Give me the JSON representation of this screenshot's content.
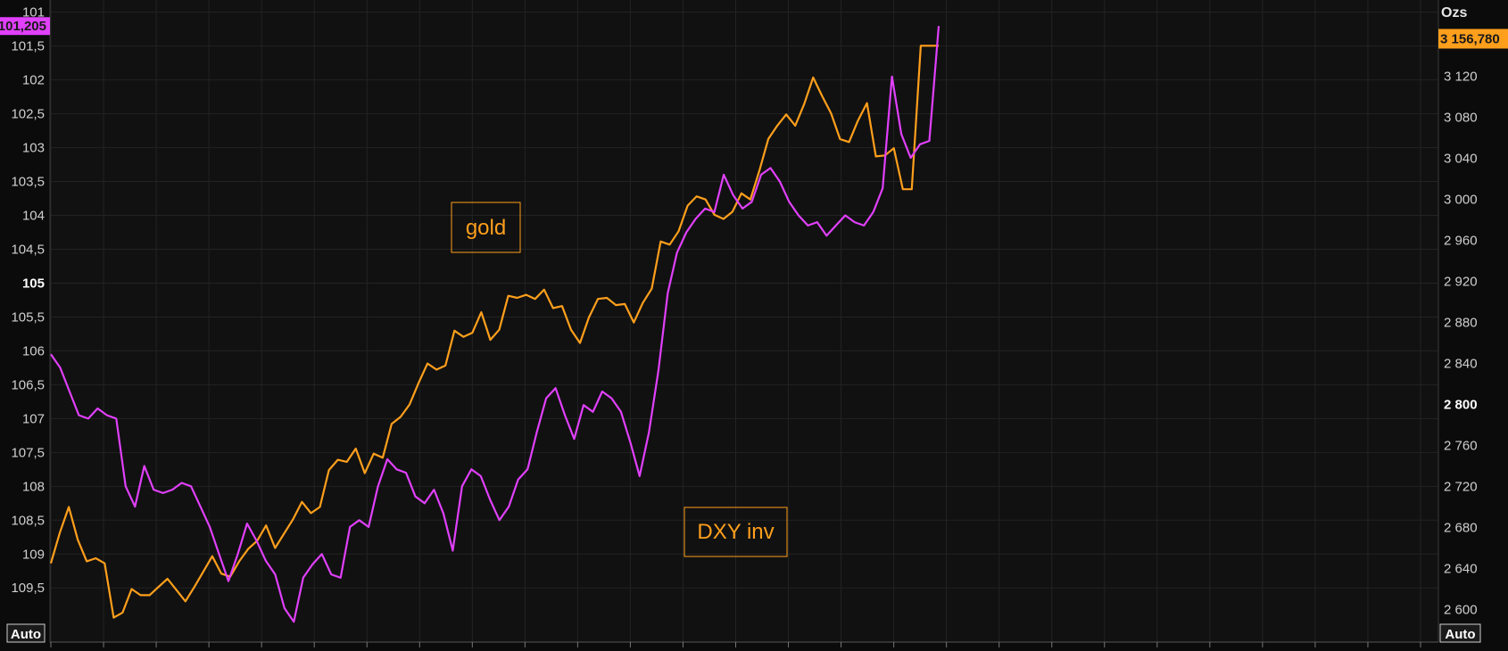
{
  "chart_data": {
    "type": "line",
    "units_label": "Ozs",
    "auto_label": "Auto",
    "left_axis": {
      "inverted": true,
      "range": [
        100.82,
        110.3
      ],
      "ticks": [
        "101",
        "101,5",
        "102",
        "102,5",
        "103",
        "103,5",
        "104",
        "104,5",
        "105",
        "105,5",
        "106",
        "106,5",
        "107",
        "107,5",
        "108",
        "108,5",
        "109",
        "109,5"
      ],
      "tick_values": [
        101,
        101.5,
        102,
        102.5,
        103,
        103.5,
        104,
        104.5,
        105,
        105.5,
        106,
        106.5,
        107,
        107.5,
        108,
        108.5,
        109,
        109.5
      ],
      "bold_tick": "105",
      "last_value_label": "101,205",
      "last_value": 101.205
    },
    "right_axis": {
      "range": [
        2568.2,
        3194.6
      ],
      "ticks": [
        "3 120",
        "3 080",
        "3 040",
        "3 000",
        "2 960",
        "2 920",
        "2 880",
        "2 840",
        "2 800",
        "2 760",
        "2 720",
        "2 680",
        "2 640",
        "2 600"
      ],
      "tick_values": [
        3120,
        3080,
        3040,
        3000,
        2960,
        2920,
        2880,
        2840,
        2800,
        2760,
        2720,
        2680,
        2640,
        2600
      ],
      "bold_tick": "2 800",
      "last_value_label": "3 156,780",
      "last_value": 3156.78
    },
    "x_range": [
      0,
      136
    ],
    "series": [
      {
        "color": "#ff9f1c",
        "axis": "right",
        "values": [
          2645,
          2675,
          2700,
          2668,
          2647,
          2650,
          2645,
          2592,
          2597,
          2620,
          2614,
          2614,
          2622,
          2630,
          2619,
          2608,
          2622,
          2637,
          2652,
          2635,
          2632,
          2647,
          2659,
          2667,
          2682,
          2660,
          2674,
          2688,
          2705,
          2694,
          2700,
          2736,
          2746,
          2744,
          2757,
          2733,
          2752,
          2748,
          2781,
          2788,
          2800,
          2821,
          2840,
          2834,
          2838,
          2872,
          2866,
          2870,
          2890,
          2863,
          2873,
          2906,
          2904,
          2907,
          2903,
          2912,
          2894,
          2896,
          2873,
          2860,
          2885,
          2903,
          2904,
          2897,
          2898,
          2880,
          2899,
          2913,
          2959,
          2956,
          2969,
          2994,
          3003,
          3000,
          2985,
          2981,
          2988,
          3006,
          3000,
          3028,
          3059,
          3072,
          3083,
          3072,
          3093,
          3119,
          3101,
          3084,
          3059,
          3056,
          3077,
          3094,
          3042,
          3043,
          3050,
          3010,
          3010,
          3150,
          3150,
          3150
        ]
      },
      {
        "color": "#e040fb",
        "axis": "left",
        "values": [
          106.05,
          106.25,
          106.6,
          106.95,
          107.0,
          106.85,
          106.95,
          107.0,
          108.0,
          108.3,
          107.7,
          108.05,
          108.1,
          108.05,
          107.95,
          108.0,
          108.3,
          108.6,
          109.0,
          109.4,
          109.0,
          108.55,
          108.8,
          109.1,
          109.3,
          109.8,
          110.0,
          109.35,
          109.15,
          109.0,
          109.3,
          109.35,
          108.6,
          108.5,
          108.6,
          108.0,
          107.6,
          107.75,
          107.8,
          108.15,
          108.25,
          108.05,
          108.4,
          108.95,
          108.0,
          107.75,
          107.85,
          108.2,
          108.5,
          108.3,
          107.9,
          107.75,
          107.2,
          106.7,
          106.55,
          106.95,
          107.3,
          106.8,
          106.9,
          106.6,
          106.7,
          106.9,
          107.35,
          107.85,
          107.2,
          106.3,
          105.15,
          104.55,
          104.25,
          104.05,
          103.9,
          103.95,
          103.4,
          103.7,
          103.9,
          103.8,
          103.4,
          103.3,
          103.5,
          103.8,
          104.0,
          104.15,
          104.1,
          104.3,
          104.15,
          104.0,
          104.1,
          104.15,
          103.95,
          103.6,
          101.95,
          102.8,
          103.15,
          102.95,
          102.9,
          101.205
        ]
      }
    ],
    "annotations": [
      {
        "text": "gold",
        "color": "#ff9f1c"
      },
      {
        "text": "DXY inv",
        "color": "#ff9f1c"
      }
    ]
  }
}
